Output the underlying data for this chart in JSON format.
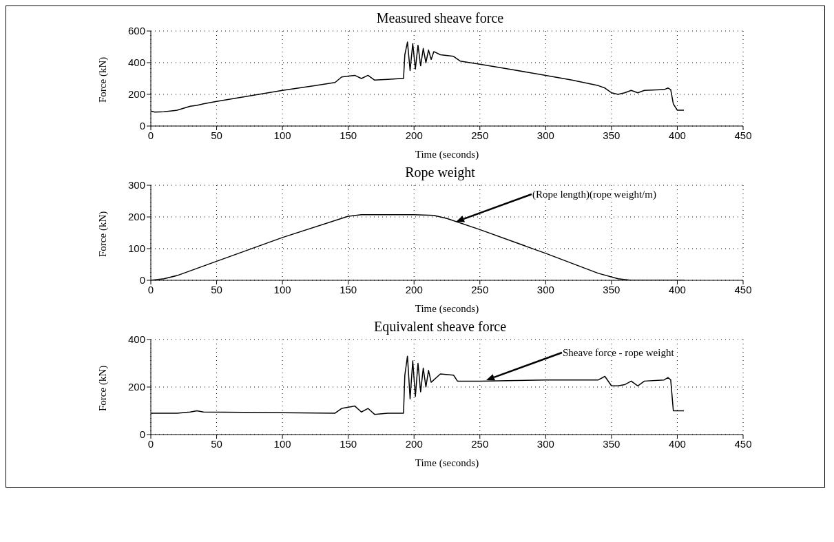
{
  "chart_data": [
    {
      "type": "line",
      "title": "Measured sheave force",
      "xlabel": "Time (seconds)",
      "ylabel": "Force (kN)",
      "xlim": [
        0,
        450
      ],
      "xticks": [
        0,
        50,
        100,
        150,
        200,
        250,
        300,
        350,
        400,
        450
      ],
      "ylim": [
        0,
        600
      ],
      "yticks": [
        0,
        200,
        400,
        600
      ],
      "grid": true,
      "legend": false,
      "marker": "none",
      "line_style": "solid",
      "series": [
        {
          "color": "#000000",
          "x": [
            0,
            3,
            10,
            20,
            30,
            35,
            40,
            50,
            75,
            100,
            125,
            140,
            145,
            155,
            160,
            165,
            170,
            180,
            190,
            192,
            193,
            195,
            197,
            199,
            201,
            203,
            205,
            207,
            209,
            211,
            213,
            215,
            220,
            230,
            235,
            250,
            275,
            300,
            320,
            340,
            345,
            350,
            355,
            360,
            365,
            370,
            375,
            390,
            393,
            395,
            397,
            400,
            405
          ],
          "values": [
            95,
            88,
            90,
            100,
            125,
            130,
            140,
            155,
            190,
            225,
            255,
            275,
            310,
            320,
            300,
            320,
            290,
            295,
            300,
            300,
            450,
            530,
            350,
            520,
            360,
            510,
            380,
            490,
            400,
            480,
            420,
            470,
            450,
            440,
            410,
            390,
            355,
            320,
            290,
            255,
            240,
            210,
            200,
            210,
            225,
            210,
            225,
            230,
            240,
            230,
            140,
            100,
            100
          ]
        }
      ]
    },
    {
      "type": "line",
      "title": "Rope weight",
      "xlabel": "Time (seconds)",
      "ylabel": "Force (kN)",
      "xlim": [
        0,
        450
      ],
      "xticks": [
        0,
        50,
        100,
        150,
        200,
        250,
        300,
        350,
        400,
        450
      ],
      "ylim": [
        0,
        300
      ],
      "yticks": [
        0,
        100,
        200,
        300
      ],
      "grid": true,
      "legend": false,
      "marker": "none",
      "line_style": "solid",
      "annotations": [
        "(Rope length)(rope weight/m)"
      ],
      "series": [
        {
          "color": "#000000",
          "x": [
            0,
            10,
            20,
            50,
            100,
            150,
            160,
            200,
            215,
            225,
            250,
            300,
            340,
            355,
            365,
            405
          ],
          "values": [
            0,
            5,
            15,
            60,
            135,
            202,
            207,
            207,
            205,
            195,
            160,
            85,
            22,
            5,
            0,
            0
          ]
        }
      ]
    },
    {
      "type": "line",
      "title": "Equivalent sheave force",
      "xlabel": "Time (seconds)",
      "ylabel": "Force (kN)",
      "xlim": [
        0,
        450
      ],
      "xticks": [
        0,
        50,
        100,
        150,
        200,
        250,
        300,
        350,
        400,
        450
      ],
      "ylim": [
        0,
        400
      ],
      "yticks": [
        0,
        200,
        400
      ],
      "grid": true,
      "legend": false,
      "marker": "none",
      "line_style": "solid",
      "annotations": [
        "Sheave force - rope weight"
      ],
      "series": [
        {
          "color": "#000000",
          "x": [
            0,
            20,
            30,
            35,
            40,
            100,
            140,
            145,
            155,
            160,
            165,
            170,
            180,
            190,
            192,
            193,
            195,
            197,
            199,
            201,
            203,
            205,
            207,
            209,
            211,
            213,
            220,
            230,
            233,
            250,
            300,
            340,
            345,
            350,
            355,
            360,
            365,
            370,
            375,
            390,
            393,
            395,
            397,
            405
          ],
          "values": [
            90,
            90,
            95,
            100,
            95,
            92,
            90,
            110,
            120,
            95,
            110,
            85,
            90,
            90,
            90,
            250,
            330,
            150,
            310,
            160,
            300,
            180,
            280,
            200,
            270,
            220,
            255,
            250,
            225,
            225,
            230,
            230,
            245,
            205,
            205,
            210,
            225,
            205,
            225,
            230,
            240,
            230,
            100,
            100
          ]
        }
      ]
    }
  ]
}
